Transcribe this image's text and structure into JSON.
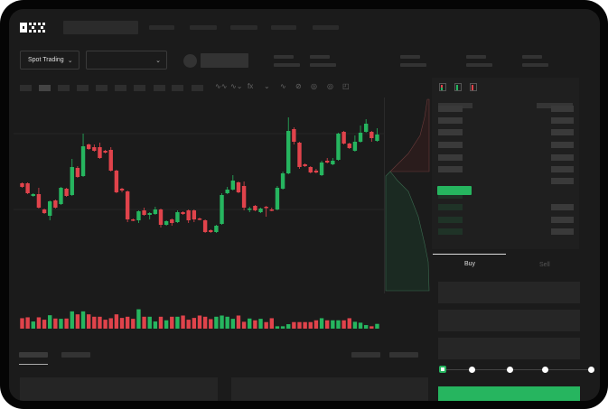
{
  "brand": {
    "logo_text": "OKX"
  },
  "toolbar": {
    "market_selector": "Spot Trading",
    "icons": [
      "indicator-icon",
      "indicator-icon",
      "fx-icon",
      "chevron-down-icon",
      "line-icon",
      "pencil-icon",
      "camera-icon",
      "settings-icon",
      "fullscreen-icon"
    ]
  },
  "order_form": {
    "buy_label": "Buy",
    "sell_label": "Sell",
    "slider_percent": 0
  },
  "colors": {
    "up": "#26b55f",
    "down": "#e0434b",
    "background": "#1b1b1b"
  },
  "chart_data": {
    "type": "candlestick",
    "candles_ohlc": [
      [
        97,
        93,
        98,
        92
      ],
      [
        97,
        86,
        98,
        85
      ],
      [
        83,
        85,
        86,
        82
      ],
      [
        85,
        70,
        92,
        69
      ],
      [
        68,
        64,
        69,
        63
      ],
      [
        61,
        77,
        78,
        56
      ],
      [
        78,
        70,
        79,
        69
      ],
      [
        74,
        92,
        93,
        73
      ],
      [
        91,
        83,
        92,
        82
      ],
      [
        84,
        115,
        124,
        83
      ],
      [
        114,
        104,
        116,
        103
      ],
      [
        105,
        138,
        152,
        104
      ],
      [
        140,
        135,
        141,
        134
      ],
      [
        137,
        133,
        140,
        132
      ],
      [
        137,
        125,
        142,
        124
      ],
      [
        133,
        131,
        134,
        130
      ],
      [
        134,
        111,
        137,
        110
      ],
      [
        111,
        87,
        112,
        86
      ],
      [
        91,
        89,
        92,
        87
      ],
      [
        88,
        57,
        89,
        54
      ],
      [
        57,
        56,
        58,
        55
      ],
      [
        56,
        66,
        67,
        53
      ],
      [
        67,
        62,
        70,
        61
      ],
      [
        62,
        64,
        65,
        57
      ],
      [
        63,
        68,
        71,
        62
      ],
      [
        68,
        51,
        69,
        48
      ],
      [
        51,
        55,
        56,
        50
      ],
      [
        57,
        53,
        58,
        50
      ],
      [
        54,
        65,
        67,
        53
      ],
      [
        65,
        63,
        66,
        62
      ],
      [
        67,
        56,
        68,
        53
      ],
      [
        67,
        57,
        68,
        54
      ],
      [
        58,
        57,
        59,
        56
      ],
      [
        56,
        43,
        57,
        42
      ],
      [
        45,
        43,
        46,
        42
      ],
      [
        43,
        50,
        51,
        42
      ],
      [
        52,
        84,
        86,
        51
      ],
      [
        86,
        90,
        93,
        85
      ],
      [
        90,
        100,
        106,
        89
      ],
      [
        98,
        87,
        99,
        86
      ],
      [
        94,
        70,
        99,
        67
      ],
      [
        68,
        69,
        71,
        65
      ],
      [
        72,
        67,
        73,
        66
      ],
      [
        65,
        69,
        70,
        64
      ],
      [
        71,
        70,
        72,
        60
      ],
      [
        68,
        67,
        70,
        66
      ],
      [
        68,
        92,
        94,
        67
      ],
      [
        91,
        108,
        110,
        90
      ],
      [
        108,
        155,
        170,
        107
      ],
      [
        157,
        143,
        159,
        140
      ],
      [
        142,
        115,
        143,
        113
      ],
      [
        118,
        116,
        119,
        115
      ],
      [
        115,
        109,
        116,
        108
      ],
      [
        111,
        109,
        113,
        108
      ],
      [
        106,
        120,
        122,
        105
      ],
      [
        122,
        120,
        125,
        119
      ],
      [
        118,
        122,
        125,
        117
      ],
      [
        123,
        152,
        153,
        122
      ],
      [
        154,
        141,
        155,
        140
      ],
      [
        141,
        136,
        142,
        135
      ],
      [
        133,
        143,
        150,
        132
      ],
      [
        143,
        153,
        161,
        142
      ],
      [
        154,
        163,
        168,
        153
      ],
      [
        154,
        147,
        155,
        143
      ],
      [
        144,
        151,
        158,
        143
      ]
    ],
    "volume": [
      35,
      38,
      24,
      38,
      30,
      45,
      34,
      33,
      34,
      58,
      48,
      58,
      48,
      40,
      40,
      30,
      35,
      48,
      36,
      40,
      33,
      65,
      40,
      40,
      24,
      40,
      28,
      40,
      40,
      44,
      30,
      36,
      44,
      40,
      32,
      40,
      44,
      40,
      33,
      44,
      23,
      34,
      28,
      33,
      22,
      35,
      8,
      8,
      15,
      22,
      22,
      22,
      22,
      28,
      35,
      28,
      28,
      28,
      28,
      35,
      23,
      20,
      12,
      8,
      16
    ],
    "grid": true
  }
}
